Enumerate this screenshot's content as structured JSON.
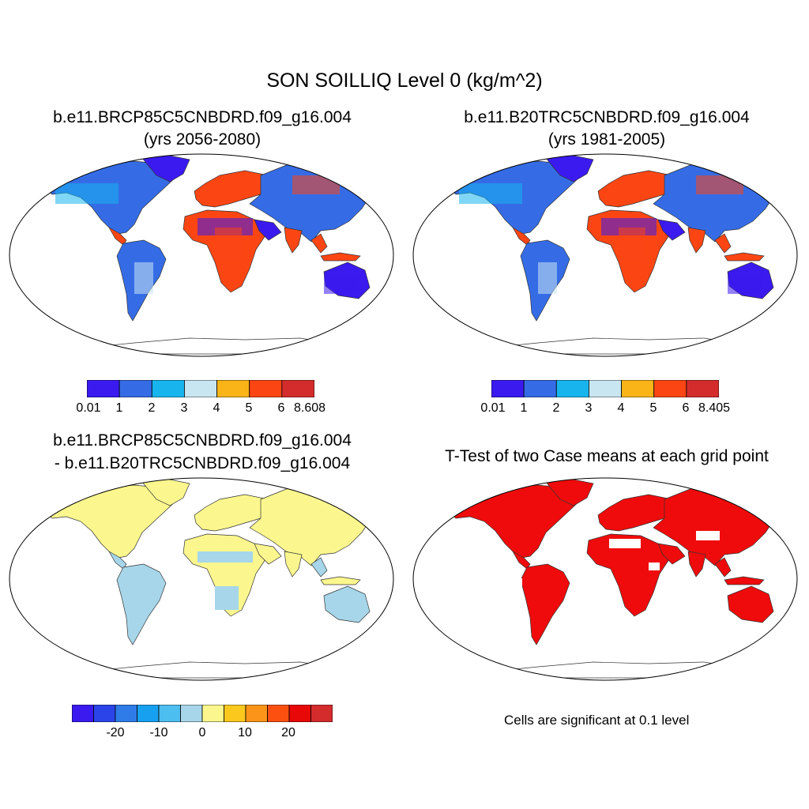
{
  "title": "SON SOILLIQ Level 0 (kg/m^2)",
  "panels": {
    "future": {
      "title_line1": "b.e11.BRCP85C5CNBDRD.f09_g16.004",
      "title_line2": "(yrs 2056-2080)",
      "colorbar": {
        "colors": [
          "#3a1aef",
          "#356ce6",
          "#18b4ee",
          "#c8e6f2",
          "#fbb418",
          "#fb4614",
          "#d42c2c"
        ],
        "labels": [
          "0.01",
          "1",
          "2",
          "3",
          "4",
          "5",
          "6",
          "8.608"
        ]
      }
    },
    "historical": {
      "title_line1": "b.e11.B20TRC5CNBDRD.f09_g16.004",
      "title_line2": "(yrs 1981-2005)",
      "colorbar": {
        "colors": [
          "#3a1aef",
          "#356ce6",
          "#18b4ee",
          "#c8e6f2",
          "#fbb418",
          "#fb4614",
          "#d42c2c"
        ],
        "labels": [
          "0.01",
          "1",
          "2",
          "3",
          "4",
          "5",
          "6",
          "8.405"
        ]
      }
    },
    "difference": {
      "title_line1": "b.e11.BRCP85C5CNBDRD.f09_g16.004",
      "title_line2": "- b.e11.B20TRC5CNBDRD.f09_g16.004",
      "colorbar": {
        "colors": [
          "#3a1aef",
          "#2a44ea",
          "#2f7ce8",
          "#17a0f0",
          "#4cbef0",
          "#a7d6ea",
          "#fbf78e",
          "#fbc81e",
          "#fb9418",
          "#fb5010",
          "#e80808",
          "#d42c2c"
        ],
        "labels": [
          "-20",
          "-10",
          "0",
          "10",
          "20"
        ]
      }
    },
    "ttest": {
      "title_line1": "T-Test of two Case means at each grid point",
      "note": "Cells are significant at 0.1 level",
      "significant_color": "#ef0b0b"
    }
  },
  "colors": {
    "land_dry": "#3a1aef",
    "land_mid": "#356ce6",
    "land_wet": "#fb4614",
    "diff_pos": "#fbf78e",
    "diff_neg": "#a7d6ea"
  }
}
